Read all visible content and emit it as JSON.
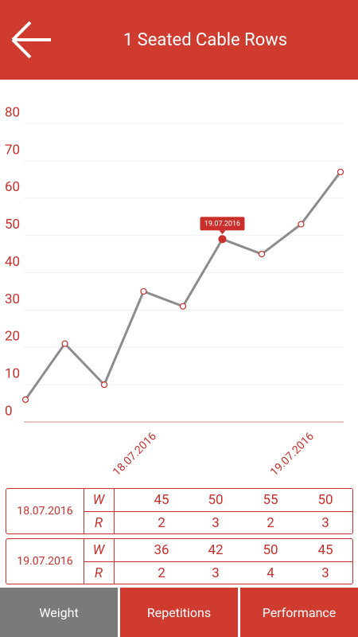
{
  "header": {
    "title": "1 Seated Cable Rows"
  },
  "chart_data": {
    "type": "line",
    "categories": [
      null,
      null,
      null,
      "18.07.2016",
      null,
      null,
      null,
      "19.07.2016",
      null
    ],
    "values": [
      6,
      21,
      10,
      35,
      31,
      49,
      45,
      53,
      67
    ],
    "color": "#8c8c8c",
    "point_color": "#c9302c",
    "ylim": [
      0,
      80
    ],
    "yticks": [
      0,
      10,
      20,
      30,
      40,
      50,
      60,
      70,
      80
    ],
    "grid": true,
    "highlight": {
      "index": 5,
      "label": "19.07.2016"
    }
  },
  "tables": [
    {
      "date": "18.07.2016",
      "rows": [
        {
          "label": "W",
          "values": [
            "45",
            "50",
            "55",
            "50"
          ]
        },
        {
          "label": "R",
          "values": [
            "2",
            "3",
            "2",
            "3"
          ]
        }
      ]
    },
    {
      "date": "19.07.2016",
      "rows": [
        {
          "label": "W",
          "values": [
            "36",
            "42",
            "50",
            "45"
          ]
        },
        {
          "label": "R",
          "values": [
            "2",
            "3",
            "4",
            "3"
          ]
        }
      ]
    }
  ],
  "tabs": [
    "Weight",
    "Repetitions",
    "Performance"
  ]
}
